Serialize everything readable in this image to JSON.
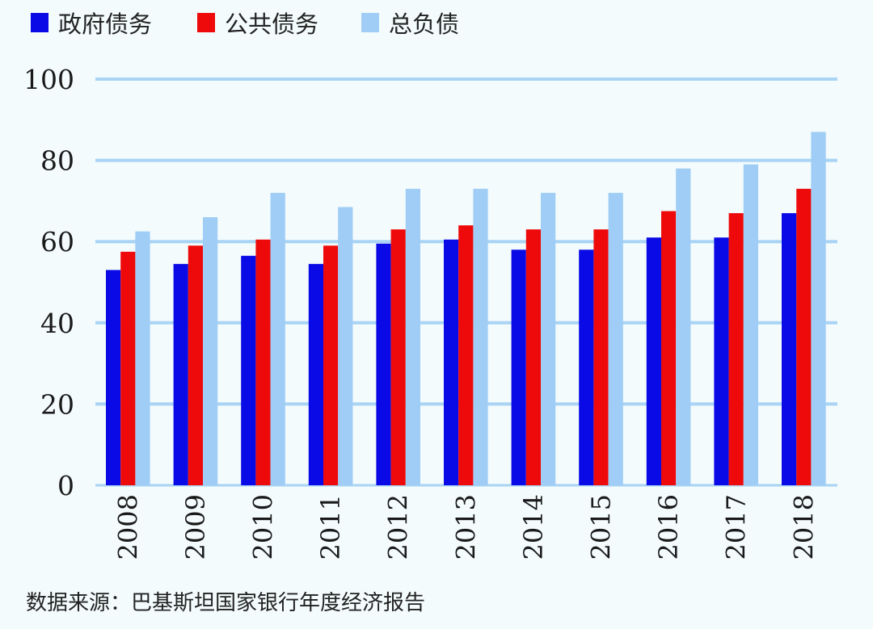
{
  "chart_data": {
    "type": "bar",
    "categories": [
      "2008",
      "2009",
      "2010",
      "2011",
      "2012",
      "2013",
      "2014",
      "2015",
      "2016",
      "2017",
      "2018"
    ],
    "series": [
      {
        "name": "政府债务",
        "color": "#0a0ae6",
        "values": [
          53,
          54.5,
          56.5,
          54.5,
          59.5,
          60.5,
          58,
          58,
          61,
          61,
          67
        ]
      },
      {
        "name": "公共债务",
        "color": "#ee0a0a",
        "values": [
          57.5,
          59,
          60.5,
          59,
          63,
          64,
          63,
          63,
          67.5,
          67,
          73
        ]
      },
      {
        "name": "总负债",
        "color": "#9fcdf6",
        "values": [
          62.5,
          66,
          72,
          68.5,
          73,
          73,
          72,
          72,
          78,
          79,
          87
        ]
      }
    ],
    "ylim": [
      0,
      100
    ],
    "yticks": [
      "0",
      "20",
      "40",
      "60",
      "80",
      "100"
    ],
    "grid": true,
    "grid_color": "#a9d4f5",
    "legend_position": "top-left"
  },
  "source": "数据来源：巴基斯坦国家银行年度经济报告"
}
